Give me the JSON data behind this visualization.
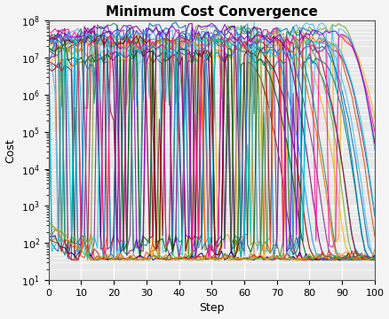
{
  "title": "Minimum Cost Convergence",
  "xlabel": "Step",
  "ylabel": "Cost",
  "xlim": [
    0,
    100
  ],
  "ylim_log": [
    10,
    100000000.0
  ],
  "n_particles": 30,
  "n_steps": 101,
  "seed": 7,
  "background_color": "#e8e8e8",
  "grid_color": "#ffffff",
  "title_fontsize": 11,
  "label_fontsize": 9,
  "linewidth": 0.8
}
